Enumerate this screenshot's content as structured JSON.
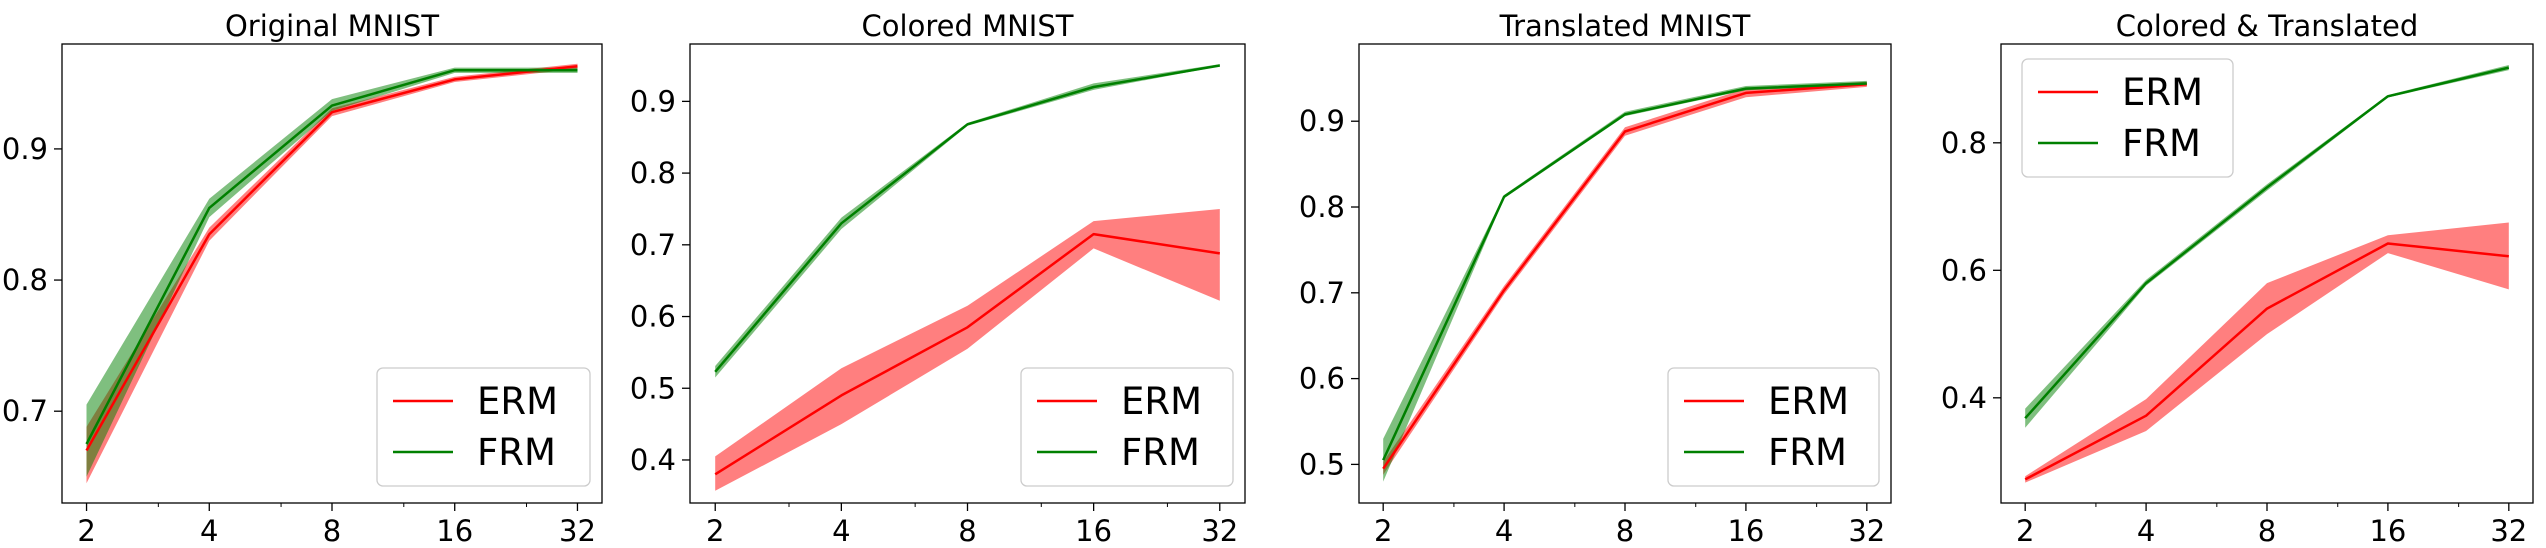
{
  "colors": {
    "ERM": "#ff0000",
    "FRM": "#008000"
  },
  "chart_data": [
    {
      "type": "line",
      "title": "Original MNIST",
      "x": [
        2,
        4,
        8,
        16,
        32
      ],
      "x_scale": "log2",
      "x_tick_labels": [
        "2",
        "4",
        "8",
        "16",
        "32"
      ],
      "y_ticks": [
        0.7,
        0.8,
        0.9
      ],
      "y_tick_labels": [
        "0.7",
        "0.8",
        "0.9"
      ],
      "ylim": [
        0.63,
        0.98
      ],
      "legend": "lower-right",
      "series": [
        {
          "name": "ERM",
          "values": [
            0.67,
            0.835,
            0.928,
            0.953,
            0.963
          ],
          "lower": [
            0.645,
            0.83,
            0.925,
            0.951,
            0.961
          ],
          "upper": [
            0.688,
            0.84,
            0.931,
            0.955,
            0.965
          ]
        },
        {
          "name": "FRM",
          "values": [
            0.675,
            0.855,
            0.933,
            0.96,
            0.96
          ],
          "lower": [
            0.65,
            0.848,
            0.929,
            0.958,
            0.958
          ],
          "upper": [
            0.705,
            0.862,
            0.938,
            0.962,
            0.962
          ]
        }
      ]
    },
    {
      "type": "line",
      "title": "Colored MNIST",
      "x": [
        2,
        4,
        8,
        16,
        32
      ],
      "x_scale": "log2",
      "x_tick_labels": [
        "2",
        "4",
        "8",
        "16",
        "32"
      ],
      "y_ticks": [
        0.4,
        0.5,
        0.6,
        0.7,
        0.8,
        0.9
      ],
      "y_tick_labels": [
        "0.4",
        "0.5",
        "0.6",
        "0.7",
        "0.8",
        "0.9"
      ],
      "ylim": [
        0.34,
        0.98
      ],
      "legend": "lower-right",
      "series": [
        {
          "name": "ERM",
          "values": [
            0.38,
            0.49,
            0.585,
            0.715,
            0.688
          ],
          "lower": [
            0.357,
            0.45,
            0.555,
            0.695,
            0.622
          ],
          "upper": [
            0.405,
            0.528,
            0.615,
            0.733,
            0.75
          ]
        },
        {
          "name": "FRM",
          "values": [
            0.523,
            0.73,
            0.868,
            0.92,
            0.95
          ],
          "lower": [
            0.515,
            0.722,
            0.866,
            0.916,
            0.949
          ],
          "upper": [
            0.531,
            0.738,
            0.87,
            0.925,
            0.952
          ]
        }
      ]
    },
    {
      "type": "line",
      "title": "Translated MNIST",
      "x": [
        2,
        4,
        8,
        16,
        32
      ],
      "x_scale": "log2",
      "x_tick_labels": [
        "2",
        "4",
        "8",
        "16",
        "32"
      ],
      "y_ticks": [
        0.5,
        0.6,
        0.7,
        0.8,
        0.9
      ],
      "y_tick_labels": [
        "0.5",
        "0.6",
        "0.7",
        "0.8",
        "0.9"
      ],
      "ylim": [
        0.455,
        0.99
      ],
      "legend": "lower-right",
      "series": [
        {
          "name": "ERM",
          "values": [
            0.495,
            0.703,
            0.888,
            0.933,
            0.943
          ],
          "lower": [
            0.488,
            0.698,
            0.883,
            0.928,
            0.94
          ],
          "upper": [
            0.503,
            0.708,
            0.893,
            0.938,
            0.946
          ]
        },
        {
          "name": "FRM",
          "values": [
            0.505,
            0.812,
            0.908,
            0.938,
            0.944
          ],
          "lower": [
            0.48,
            0.81,
            0.906,
            0.936,
            0.942
          ],
          "upper": [
            0.53,
            0.814,
            0.911,
            0.941,
            0.947
          ]
        }
      ]
    },
    {
      "type": "line",
      "title": "Colored & Translated",
      "x": [
        2,
        4,
        8,
        16,
        32
      ],
      "x_scale": "log2",
      "x_tick_labels": [
        "2",
        "4",
        "8",
        "16",
        "32"
      ],
      "y_ticks": [
        0.4,
        0.6,
        0.8
      ],
      "y_tick_labels": [
        "0.4",
        "0.6",
        "0.8"
      ],
      "ylim": [
        0.235,
        0.955
      ],
      "legend": "top-left",
      "series": [
        {
          "name": "ERM",
          "values": [
            0.272,
            0.372,
            0.54,
            0.642,
            0.622
          ],
          "lower": [
            0.267,
            0.348,
            0.5,
            0.627,
            0.57
          ],
          "upper": [
            0.277,
            0.398,
            0.58,
            0.655,
            0.675
          ]
        },
        {
          "name": "FRM",
          "values": [
            0.368,
            0.58,
            0.73,
            0.873,
            0.918
          ],
          "lower": [
            0.353,
            0.576,
            0.725,
            0.871,
            0.914
          ],
          "upper": [
            0.383,
            0.585,
            0.735,
            0.875,
            0.922
          ]
        }
      ]
    }
  ]
}
